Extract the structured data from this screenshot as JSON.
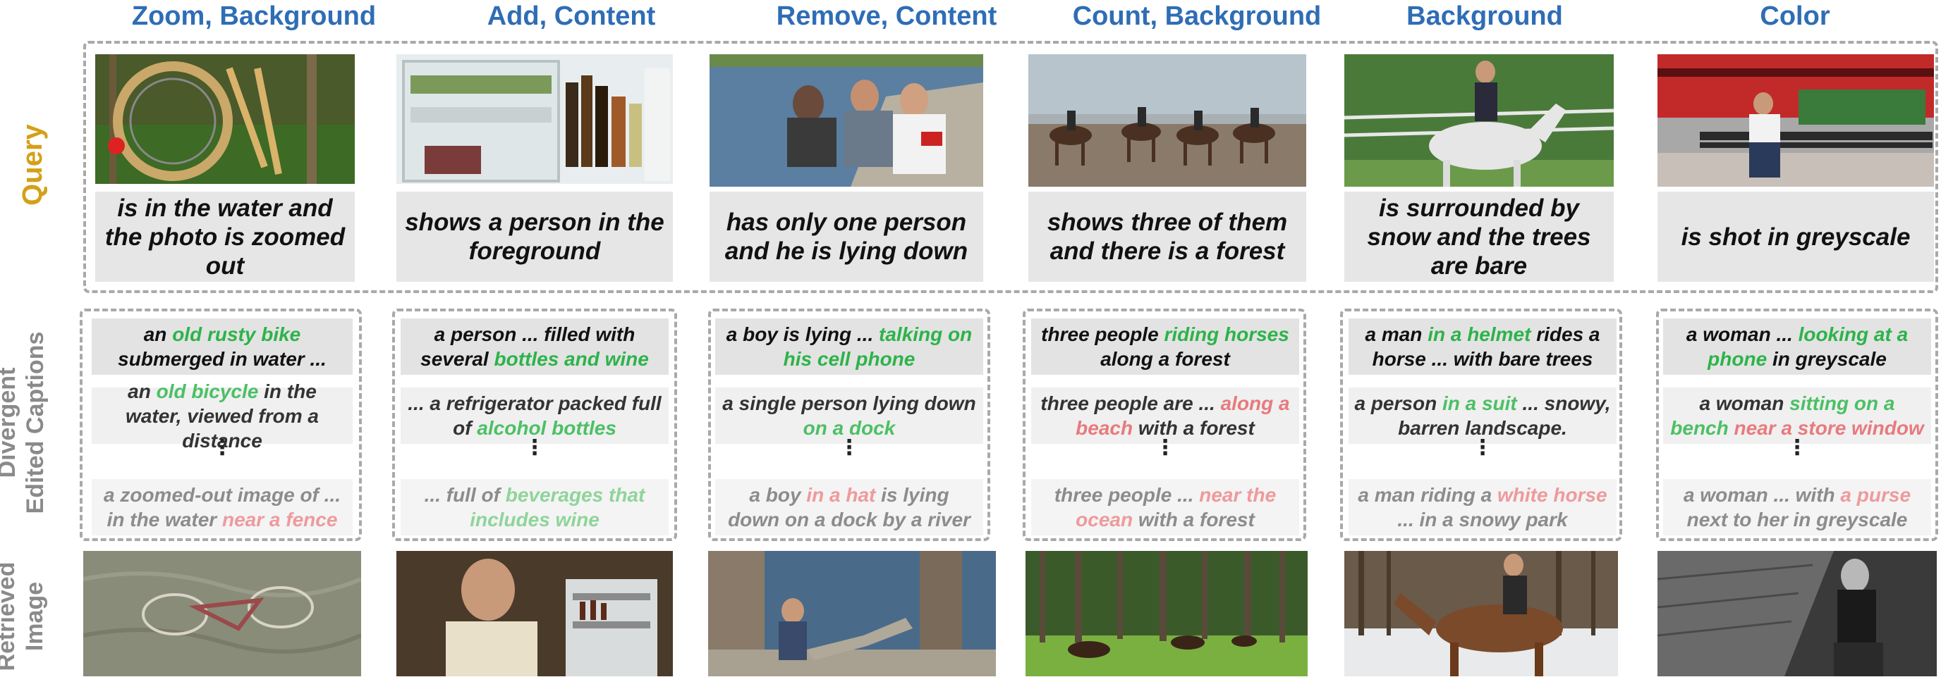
{
  "columns": [
    {
      "header": "Zoom, Background",
      "query": "is in the water and the photo is zoomed out",
      "captions": [
        [
          {
            "t": "an ",
            "c": ""
          },
          {
            "t": "old rusty bike",
            "c": "g"
          },
          {
            "t": " submerged in water ...",
            "c": ""
          }
        ],
        [
          {
            "t": "an ",
            "c": ""
          },
          {
            "t": "old bicycle",
            "c": "g"
          },
          {
            "t": " in the water, viewed from a distance",
            "c": ""
          }
        ],
        [
          {
            "t": "a zoomed-out image of ... in the water ",
            "c": ""
          },
          {
            "t": "near a fence",
            "c": "r"
          }
        ]
      ]
    },
    {
      "header": "Add, Content",
      "query": "shows a person in the foreground",
      "captions": [
        [
          {
            "t": "a person ... filled with several ",
            "c": ""
          },
          {
            "t": "bottles and wine",
            "c": "g"
          }
        ],
        [
          {
            "t": "... a refrigerator packed full of ",
            "c": ""
          },
          {
            "t": "alcohol bottles",
            "c": "g"
          }
        ],
        [
          {
            "t": "... full of ",
            "c": ""
          },
          {
            "t": "beverages that includes wine",
            "c": "g"
          }
        ]
      ]
    },
    {
      "header": "Remove, Content",
      "query": "has only one person and he is lying down",
      "captions": [
        [
          {
            "t": "a boy is lying ... ",
            "c": ""
          },
          {
            "t": "talking on his cell phone",
            "c": "g"
          }
        ],
        [
          {
            "t": "a single person lying down ",
            "c": ""
          },
          {
            "t": "on a dock",
            "c": "g"
          }
        ],
        [
          {
            "t": "a boy ",
            "c": ""
          },
          {
            "t": "in a hat",
            "c": "r"
          },
          {
            "t": "  is lying down on a dock by a river",
            "c": ""
          }
        ]
      ]
    },
    {
      "header": "Count, Background",
      "query": "shows three of them and there is a forest",
      "captions": [
        [
          {
            "t": "three people ",
            "c": ""
          },
          {
            "t": "riding horses",
            "c": "g"
          },
          {
            "t": " along a forest",
            "c": ""
          }
        ],
        [
          {
            "t": "three people are ... ",
            "c": ""
          },
          {
            "t": "along a beach",
            "c": "r"
          },
          {
            "t": " with a forest",
            "c": ""
          }
        ],
        [
          {
            "t": "three people ... ",
            "c": ""
          },
          {
            "t": "near the ocean",
            "c": "r"
          },
          {
            "t": " with a forest",
            "c": ""
          }
        ]
      ]
    },
    {
      "header": "Background",
      "query": "is surrounded by snow and the trees are bare",
      "captions": [
        [
          {
            "t": "a man ",
            "c": ""
          },
          {
            "t": "in a helmet",
            "c": "g"
          },
          {
            "t": " rides a horse ... with bare trees",
            "c": ""
          }
        ],
        [
          {
            "t": "a person ",
            "c": ""
          },
          {
            "t": "in a suit",
            "c": "g"
          },
          {
            "t": " ... snowy, barren landscape.",
            "c": ""
          }
        ],
        [
          {
            "t": "a man riding a ",
            "c": ""
          },
          {
            "t": "white horse",
            "c": "r"
          },
          {
            "t": " ... in a snowy park",
            "c": ""
          }
        ]
      ]
    },
    {
      "header": "Color",
      "query": "is shot in greyscale",
      "captions": [
        [
          {
            "t": "a woman ... ",
            "c": ""
          },
          {
            "t": "looking at a phone",
            "c": "g"
          },
          {
            "t": " in greyscale",
            "c": ""
          }
        ],
        [
          {
            "t": "a woman ",
            "c": ""
          },
          {
            "t": "sitting on a bench",
            "c": "g"
          },
          {
            "t": " ",
            "c": ""
          },
          {
            "t": "near a store window",
            "c": "r"
          }
        ],
        [
          {
            "t": "a woman ... with ",
            "c": ""
          },
          {
            "t": "a purse",
            "c": "r"
          },
          {
            "t": " next to her in greyscale",
            "c": ""
          }
        ]
      ]
    }
  ],
  "row_labels": {
    "query": "Query",
    "captions_line1": "Divergent",
    "captions_line2": "Edited Captions",
    "retrieved_line1": "Retrieved",
    "retrieved_line2": "Image"
  },
  "ellipsis": "⋮",
  "colors": {
    "header_blue": "#2f6db5",
    "query_gold": "#d4a017",
    "label_grey": "#8a8a8a",
    "positive_green": "#2db34a",
    "negative_red": "#e0585c"
  }
}
